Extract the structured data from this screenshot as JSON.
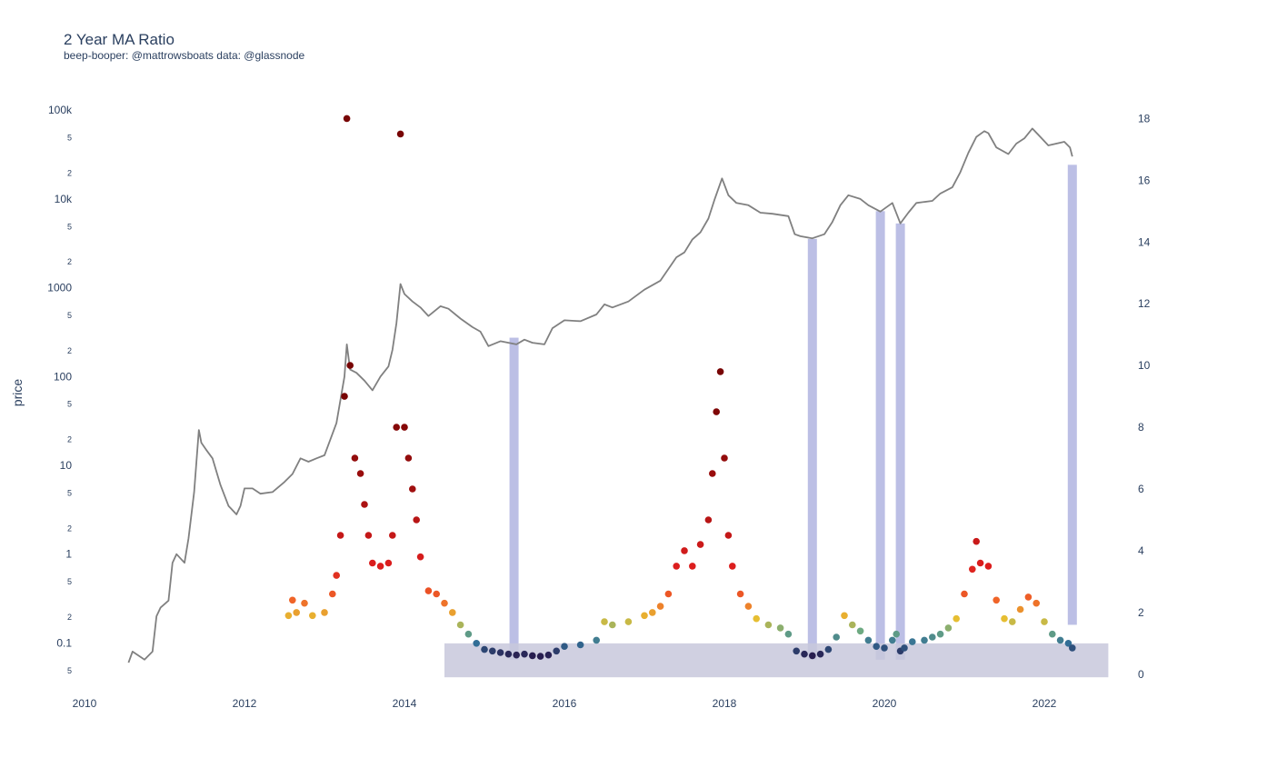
{
  "chart_data": {
    "type": "scatter",
    "title": "2 Year MA Ratio",
    "subtitle": "beep-booper: @mattrowsboats data: @glassnode",
    "ylabel": "price",
    "y_left_scale": "log",
    "y_left_range": [
      0.035,
      130000
    ],
    "y_right_range": [
      -0.3,
      18.6
    ],
    "x_range": [
      2010.0,
      2023.0
    ],
    "x_ticks": [
      "2010",
      "2012",
      "2014",
      "2016",
      "2018",
      "2020",
      "2022"
    ],
    "y_left_ticks": [
      "100k",
      "5",
      "2",
      "10k",
      "5",
      "2",
      "1000",
      "5",
      "2",
      "100",
      "5",
      "2",
      "10",
      "5",
      "2",
      "1",
      "5",
      "2",
      "0.1",
      "5"
    ],
    "y_right_ticks": [
      "18",
      "16",
      "14",
      "12",
      "10",
      "8",
      "6",
      "4",
      "2",
      "0"
    ],
    "grid": false,
    "legend": "none",
    "series": [
      {
        "type": "line",
        "axis": "left",
        "color": "#808080",
        "points": [
          [
            2010.55,
            0.06
          ],
          [
            2010.6,
            0.08
          ],
          [
            2010.75,
            0.065
          ],
          [
            2010.85,
            0.08
          ],
          [
            2010.9,
            0.2
          ],
          [
            2010.95,
            0.25
          ],
          [
            2011.05,
            0.3
          ],
          [
            2011.1,
            0.8
          ],
          [
            2011.15,
            1.0
          ],
          [
            2011.25,
            0.8
          ],
          [
            2011.3,
            1.5
          ],
          [
            2011.37,
            5.0
          ],
          [
            2011.43,
            25
          ],
          [
            2011.46,
            18
          ],
          [
            2011.52,
            15
          ],
          [
            2011.6,
            12
          ],
          [
            2011.7,
            6
          ],
          [
            2011.8,
            3.5
          ],
          [
            2011.9,
            2.8
          ],
          [
            2011.95,
            3.5
          ],
          [
            2012.0,
            5.5
          ],
          [
            2012.1,
            5.5
          ],
          [
            2012.2,
            4.8
          ],
          [
            2012.35,
            5.0
          ],
          [
            2012.5,
            6.5
          ],
          [
            2012.6,
            8.0
          ],
          [
            2012.7,
            12
          ],
          [
            2012.8,
            11
          ],
          [
            2012.9,
            12
          ],
          [
            2013.0,
            13
          ],
          [
            2013.15,
            30
          ],
          [
            2013.25,
            100
          ],
          [
            2013.28,
            230
          ],
          [
            2013.32,
            120
          ],
          [
            2013.4,
            110
          ],
          [
            2013.5,
            90
          ],
          [
            2013.6,
            70
          ],
          [
            2013.7,
            100
          ],
          [
            2013.8,
            130
          ],
          [
            2013.85,
            200
          ],
          [
            2013.9,
            400
          ],
          [
            2013.95,
            1100
          ],
          [
            2014.0,
            850
          ],
          [
            2014.1,
            700
          ],
          [
            2014.2,
            600
          ],
          [
            2014.3,
            480
          ],
          [
            2014.45,
            620
          ],
          [
            2014.55,
            580
          ],
          [
            2014.7,
            450
          ],
          [
            2014.85,
            360
          ],
          [
            2014.95,
            320
          ],
          [
            2015.05,
            220
          ],
          [
            2015.2,
            250
          ],
          [
            2015.4,
            230
          ],
          [
            2015.5,
            260
          ],
          [
            2015.6,
            240
          ],
          [
            2015.75,
            230
          ],
          [
            2015.85,
            350
          ],
          [
            2016.0,
            430
          ],
          [
            2016.2,
            420
          ],
          [
            2016.4,
            500
          ],
          [
            2016.5,
            650
          ],
          [
            2016.6,
            600
          ],
          [
            2016.8,
            700
          ],
          [
            2017.0,
            950
          ],
          [
            2017.2,
            1200
          ],
          [
            2017.4,
            2200
          ],
          [
            2017.5,
            2500
          ],
          [
            2017.6,
            3500
          ],
          [
            2017.7,
            4200
          ],
          [
            2017.8,
            6000
          ],
          [
            2017.88,
            10000
          ],
          [
            2017.97,
            17000
          ],
          [
            2018.05,
            11000
          ],
          [
            2018.15,
            9000
          ],
          [
            2018.3,
            8500
          ],
          [
            2018.45,
            7000
          ],
          [
            2018.6,
            6800
          ],
          [
            2018.8,
            6400
          ],
          [
            2018.88,
            4000
          ],
          [
            2018.95,
            3800
          ],
          [
            2019.1,
            3600
          ],
          [
            2019.25,
            4000
          ],
          [
            2019.35,
            5500
          ],
          [
            2019.45,
            8500
          ],
          [
            2019.55,
            11000
          ],
          [
            2019.7,
            10000
          ],
          [
            2019.8,
            8500
          ],
          [
            2019.95,
            7200
          ],
          [
            2020.1,
            9000
          ],
          [
            2020.2,
            5300
          ],
          [
            2020.3,
            7000
          ],
          [
            2020.4,
            9000
          ],
          [
            2020.6,
            9500
          ],
          [
            2020.7,
            11500
          ],
          [
            2020.85,
            13500
          ],
          [
            2020.95,
            20000
          ],
          [
            2021.05,
            33000
          ],
          [
            2021.15,
            50000
          ],
          [
            2021.25,
            58000
          ],
          [
            2021.3,
            55000
          ],
          [
            2021.4,
            38000
          ],
          [
            2021.55,
            32000
          ],
          [
            2021.65,
            42000
          ],
          [
            2021.75,
            48000
          ],
          [
            2021.85,
            62000
          ],
          [
            2021.95,
            50000
          ],
          [
            2022.05,
            40000
          ],
          [
            2022.15,
            42000
          ],
          [
            2022.25,
            44000
          ],
          [
            2022.32,
            38000
          ],
          [
            2022.35,
            30000
          ]
        ]
      },
      {
        "type": "scatter",
        "axis": "right",
        "colorscale": "ratio",
        "points": [
          [
            2012.55,
            1.9
          ],
          [
            2012.6,
            2.4
          ],
          [
            2012.65,
            2.0
          ],
          [
            2012.75,
            2.3
          ],
          [
            2012.85,
            1.9
          ],
          [
            2013.0,
            2.0
          ],
          [
            2013.1,
            2.6
          ],
          [
            2013.15,
            3.2
          ],
          [
            2013.2,
            4.5
          ],
          [
            2013.25,
            9.0
          ],
          [
            2013.28,
            18.0
          ],
          [
            2013.32,
            10.0
          ],
          [
            2013.38,
            7.0
          ],
          [
            2013.45,
            6.5
          ],
          [
            2013.5,
            5.5
          ],
          [
            2013.55,
            4.5
          ],
          [
            2013.6,
            3.6
          ],
          [
            2013.7,
            3.5
          ],
          [
            2013.8,
            3.6
          ],
          [
            2013.85,
            4.5
          ],
          [
            2013.9,
            8.0
          ],
          [
            2013.95,
            17.5
          ],
          [
            2014.0,
            8.0
          ],
          [
            2014.05,
            7.0
          ],
          [
            2014.1,
            6.0
          ],
          [
            2014.15,
            5.0
          ],
          [
            2014.2,
            3.8
          ],
          [
            2014.3,
            2.7
          ],
          [
            2014.4,
            2.6
          ],
          [
            2014.5,
            2.3
          ],
          [
            2014.6,
            2.0
          ],
          [
            2014.7,
            1.6
          ],
          [
            2014.8,
            1.3
          ],
          [
            2014.9,
            1.0
          ],
          [
            2015.0,
            0.8
          ],
          [
            2015.1,
            0.75
          ],
          [
            2015.2,
            0.7
          ],
          [
            2015.3,
            0.65
          ],
          [
            2015.4,
            0.62
          ],
          [
            2015.5,
            0.65
          ],
          [
            2015.6,
            0.6
          ],
          [
            2015.7,
            0.58
          ],
          [
            2015.8,
            0.62
          ],
          [
            2015.9,
            0.75
          ],
          [
            2016.0,
            0.9
          ],
          [
            2016.2,
            0.95
          ],
          [
            2016.4,
            1.1
          ],
          [
            2016.5,
            1.7
          ],
          [
            2016.6,
            1.6
          ],
          [
            2016.8,
            1.7
          ],
          [
            2017.0,
            1.9
          ],
          [
            2017.1,
            2.0
          ],
          [
            2017.2,
            2.2
          ],
          [
            2017.3,
            2.6
          ],
          [
            2017.4,
            3.5
          ],
          [
            2017.5,
            4.0
          ],
          [
            2017.6,
            3.5
          ],
          [
            2017.7,
            4.2
          ],
          [
            2017.8,
            5.0
          ],
          [
            2017.85,
            6.5
          ],
          [
            2017.9,
            8.5
          ],
          [
            2017.95,
            9.8
          ],
          [
            2018.0,
            7.0
          ],
          [
            2018.05,
            4.5
          ],
          [
            2018.1,
            3.5
          ],
          [
            2018.2,
            2.6
          ],
          [
            2018.3,
            2.2
          ],
          [
            2018.4,
            1.8
          ],
          [
            2018.55,
            1.6
          ],
          [
            2018.7,
            1.5
          ],
          [
            2018.8,
            1.3
          ],
          [
            2018.9,
            0.75
          ],
          [
            2019.0,
            0.65
          ],
          [
            2019.1,
            0.6
          ],
          [
            2019.2,
            0.65
          ],
          [
            2019.3,
            0.8
          ],
          [
            2019.4,
            1.2
          ],
          [
            2019.5,
            1.9
          ],
          [
            2019.6,
            1.6
          ],
          [
            2019.7,
            1.4
          ],
          [
            2019.8,
            1.1
          ],
          [
            2019.9,
            0.9
          ],
          [
            2020.0,
            0.85
          ],
          [
            2020.1,
            1.1
          ],
          [
            2020.15,
            1.3
          ],
          [
            2020.2,
            0.75
          ],
          [
            2020.25,
            0.85
          ],
          [
            2020.35,
            1.05
          ],
          [
            2020.5,
            1.1
          ],
          [
            2020.6,
            1.2
          ],
          [
            2020.7,
            1.3
          ],
          [
            2020.8,
            1.5
          ],
          [
            2020.9,
            1.8
          ],
          [
            2021.0,
            2.6
          ],
          [
            2021.1,
            3.4
          ],
          [
            2021.15,
            4.3
          ],
          [
            2021.2,
            3.6
          ],
          [
            2021.3,
            3.5
          ],
          [
            2021.4,
            2.4
          ],
          [
            2021.5,
            1.8
          ],
          [
            2021.6,
            1.7
          ],
          [
            2021.7,
            2.1
          ],
          [
            2021.8,
            2.5
          ],
          [
            2021.9,
            2.3
          ],
          [
            2022.0,
            1.7
          ],
          [
            2022.1,
            1.3
          ],
          [
            2022.2,
            1.1
          ],
          [
            2022.3,
            1.0
          ],
          [
            2022.35,
            0.85
          ]
        ]
      }
    ],
    "bands": [
      {
        "type": "vertical",
        "x": 2015.37,
        "y_top": 10.9,
        "color": "#b0b4e0"
      },
      {
        "type": "vertical",
        "x": 2019.1,
        "y_top": 14.1,
        "color": "#b0b4e0"
      },
      {
        "type": "vertical",
        "x": 2019.95,
        "y_top": 15.0,
        "color": "#b0b4e0"
      },
      {
        "type": "vertical",
        "x": 2020.2,
        "y_top": 14.6,
        "color": "#b0b4e0"
      },
      {
        "type": "vertical",
        "x": 2022.35,
        "y_bottom": 1.6,
        "y_top": 16.5,
        "color": "#b0b4e0"
      },
      {
        "type": "horizontal",
        "x0": 2014.5,
        "x1": 2022.8,
        "y0": -0.1,
        "y1": 1.0,
        "color": "#c8c8dc"
      }
    ]
  }
}
